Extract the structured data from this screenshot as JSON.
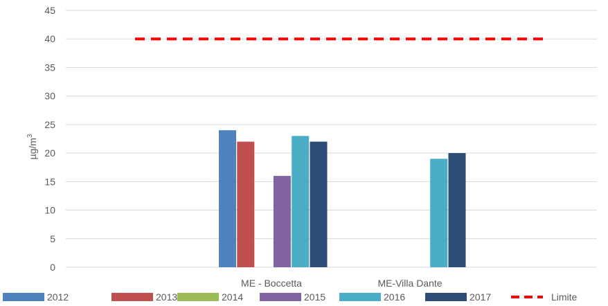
{
  "chart_data": {
    "type": "bar",
    "title": "",
    "ylabel": "µg/m",
    "ylabel_superscript": "3",
    "ylim": [
      0,
      45
    ],
    "yticks": [
      0,
      5,
      10,
      15,
      20,
      25,
      30,
      35,
      40,
      45
    ],
    "grid": true,
    "legend_position": "bottom",
    "categories": [
      "ME - Boccetta",
      "ME-Villa Dante"
    ],
    "series": [
      {
        "name": "2012",
        "color": "#4f81bd",
        "values": [
          24,
          null
        ]
      },
      {
        "name": "2013",
        "color": "#c0504d",
        "values": [
          22,
          null
        ]
      },
      {
        "name": "2014",
        "color": "#9bbb59",
        "values": [
          null,
          null
        ]
      },
      {
        "name": "2015",
        "color": "#8064a2",
        "values": [
          16,
          null
        ]
      },
      {
        "name": "2016",
        "color": "#4bacc6",
        "values": [
          23,
          19
        ]
      },
      {
        "name": "2017",
        "color": "#2c4d75",
        "values": [
          22,
          20
        ]
      }
    ],
    "reference_line": {
      "name": "Limite",
      "value": 40,
      "color": "#ff0000",
      "style": "dashed"
    }
  }
}
